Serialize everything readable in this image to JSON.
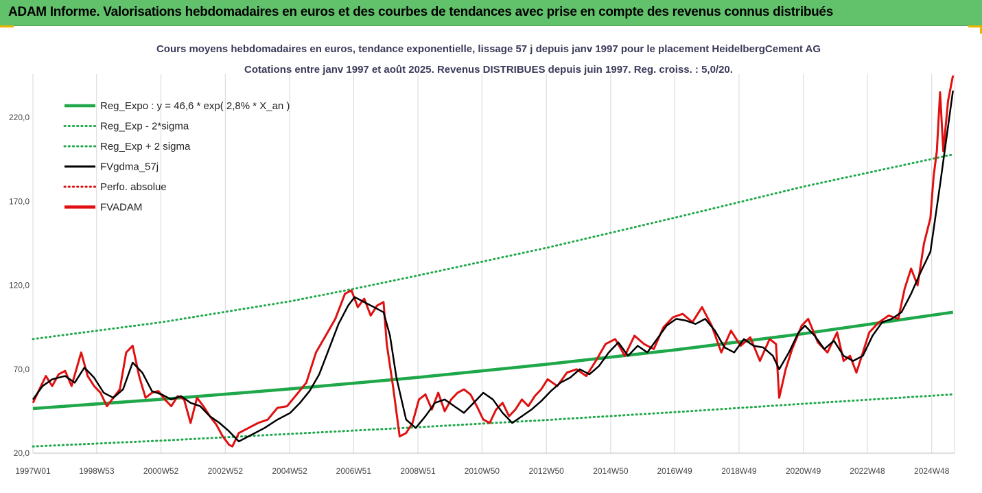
{
  "banner": {
    "title": "ADAM Informe. Valorisations hebdomadaires en euros et des courbes de tendances avec prise en compte des revenus connus distribués"
  },
  "colors": {
    "banner_bg": "#62c26c",
    "accent": "#e8b400",
    "reg_expo": "#1fa84a",
    "band": "#1fa84a",
    "fvgdma": "#000000",
    "perf": "#e01010",
    "fvadam": "#e01010"
  },
  "chart_data": {
    "type": "line",
    "title": "Cours moyens hebdomadaires en euros, tendance exponentielle, lissage 57 j depuis janv 1997 pour le placement HeidelbergCement AG",
    "subtitle": "Cotations entre janv 1997 et août 2025. Revenus DISTRIBUES depuis juin 1997. Reg. croiss. : 5,0/20.",
    "xlabel": "",
    "ylabel": "",
    "x_range": [
      1997.0,
      2025.65
    ],
    "ylim": [
      20,
      245
    ],
    "yticks": [
      20,
      70,
      120,
      170,
      220
    ],
    "ytick_labels": [
      "20,0",
      "70,0",
      "120,0",
      "170,0",
      "220,0"
    ],
    "xtick_labels": [
      {
        "label": "1997W01",
        "x": 1997.0
      },
      {
        "label": "1998W53",
        "x": 1998.98
      },
      {
        "label": "2000W52",
        "x": 2000.98
      },
      {
        "label": "2002W52",
        "x": 2002.98
      },
      {
        "label": "2004W52",
        "x": 2004.98
      },
      {
        "label": "2006W51",
        "x": 2006.97
      },
      {
        "label": "2008W51",
        "x": 2008.97
      },
      {
        "label": "2010W50",
        "x": 2010.96
      },
      {
        "label": "2012W50",
        "x": 2012.96
      },
      {
        "label": "2014W50",
        "x": 2014.96
      },
      {
        "label": "2016W49",
        "x": 2016.95
      },
      {
        "label": "2018W49",
        "x": 2018.95
      },
      {
        "label": "2020W49",
        "x": 2020.95
      },
      {
        "label": "2022W48",
        "x": 2022.94
      },
      {
        "label": "2024W48",
        "x": 2024.94
      }
    ],
    "grid": "vertical",
    "legend_position": "top-left",
    "legend": [
      {
        "name": "Reg_Expo : y = 46,6 * exp( 2,8% *  X_an )",
        "style": "thick-solid",
        "color": "#1fa84a"
      },
      {
        "name": "Reg_Exp - 2*sigma",
        "style": "dotted",
        "color": "#1fa84a"
      },
      {
        "name": "Reg_Exp + 2 sigma",
        "style": "dotted",
        "color": "#1fa84a"
      },
      {
        "name": "FVgdma_57j",
        "style": "solid",
        "color": "#000000"
      },
      {
        "name": "Perfo. absolue",
        "style": "dotted",
        "color": "#e01010"
      },
      {
        "name": "FVADAM",
        "style": "thick-solid",
        "color": "#e01010"
      }
    ],
    "regression": {
      "a": 46.6,
      "rate": 0.028
    },
    "series": [
      {
        "name": "Reg_Expo : y = 46,6 * exp( 2,8% *  X_an )",
        "x": [
          1997.0,
          2001.0,
          2005.0,
          2009.0,
          2013.0,
          2017.0,
          2021.0,
          2025.6
        ],
        "y": [
          46.6,
          52.1,
          58.3,
          65.2,
          73.0,
          81.6,
          91.3,
          104.0
        ]
      },
      {
        "name": "Reg_Exp - 2*sigma",
        "x": [
          1997.0,
          2001.0,
          2005.0,
          2009.0,
          2013.0,
          2017.0,
          2021.0,
          2025.6
        ],
        "y": [
          24.0,
          27.5,
          31.5,
          35.5,
          39.8,
          44.5,
          49.5,
          55.0
        ]
      },
      {
        "name": "Reg_Exp + 2 sigma",
        "x": [
          1997.0,
          2001.0,
          2005.0,
          2007.0,
          2009.0,
          2013.0,
          2017.0,
          2021.0,
          2025.6
        ],
        "y": [
          88.0,
          98.0,
          110.5,
          118.0,
          126.0,
          142.5,
          160.5,
          179.0,
          198.0
        ]
      },
      {
        "name": "FVgdma_57j",
        "x": [
          1997.0,
          1997.3,
          1997.6,
          1998.0,
          1998.3,
          1998.6,
          1998.9,
          1999.2,
          1999.5,
          1999.8,
          2000.1,
          2000.4,
          2000.7,
          2001.0,
          2001.3,
          2001.6,
          2001.9,
          2002.2,
          2002.5,
          2002.8,
          2003.1,
          2003.4,
          2003.8,
          2004.2,
          2004.6,
          2005.0,
          2005.3,
          2005.6,
          2005.9,
          2006.2,
          2006.5,
          2006.8,
          2007.0,
          2007.3,
          2007.6,
          2007.9,
          2008.1,
          2008.3,
          2008.6,
          2008.9,
          2009.2,
          2009.5,
          2009.8,
          2010.1,
          2010.4,
          2010.7,
          2011.0,
          2011.3,
          2011.6,
          2011.9,
          2012.2,
          2012.5,
          2012.8,
          2013.1,
          2013.4,
          2013.7,
          2014.0,
          2014.3,
          2014.6,
          2014.9,
          2015.2,
          2015.5,
          2015.8,
          2016.1,
          2016.4,
          2016.7,
          2017.0,
          2017.3,
          2017.6,
          2017.9,
          2018.2,
          2018.5,
          2018.8,
          2019.1,
          2019.4,
          2019.7,
          2020.0,
          2020.2,
          2020.5,
          2020.8,
          2021.0,
          2021.3,
          2021.6,
          2021.9,
          2022.2,
          2022.5,
          2022.8,
          2023.1,
          2023.4,
          2023.7,
          2024.0,
          2024.3,
          2024.6,
          2024.9,
          2025.2,
          2025.6
        ],
        "y": [
          52,
          60,
          64,
          66,
          62,
          71,
          65,
          56,
          53,
          58,
          74,
          68,
          57,
          55,
          52,
          54,
          50,
          48,
          42,
          38,
          33,
          27,
          31,
          35,
          40,
          44,
          50,
          57,
          67,
          82,
          97,
          108,
          113,
          110,
          107,
          104,
          90,
          65,
          40,
          35,
          42,
          50,
          52,
          48,
          44,
          50,
          56,
          52,
          44,
          38,
          42,
          46,
          51,
          57,
          62,
          65,
          70,
          67,
          72,
          80,
          86,
          78,
          84,
          80,
          88,
          96,
          100,
          99,
          97,
          100,
          93,
          83,
          80,
          88,
          84,
          83,
          78,
          70,
          80,
          92,
          96,
          90,
          82,
          87,
          78,
          75,
          78,
          90,
          98,
          100,
          104,
          115,
          128,
          140,
          180,
          236
        ]
      },
      {
        "name": "FVADAM",
        "x": [
          1997.0,
          1997.2,
          1997.4,
          1997.6,
          1997.8,
          1998.0,
          1998.2,
          1998.5,
          1998.7,
          1998.9,
          1999.1,
          1999.3,
          1999.5,
          1999.7,
          1999.9,
          2000.1,
          2000.3,
          2000.5,
          2000.7,
          2000.9,
          2001.1,
          2001.3,
          2001.5,
          2001.7,
          2001.9,
          2002.1,
          2002.3,
          2002.5,
          2002.7,
          2002.9,
          2003.1,
          2003.2,
          2003.4,
          2003.7,
          2004.0,
          2004.3,
          2004.6,
          2004.9,
          2005.2,
          2005.5,
          2005.8,
          2006.1,
          2006.4,
          2006.7,
          2006.9,
          2007.1,
          2007.3,
          2007.5,
          2007.7,
          2007.9,
          2008.0,
          2008.2,
          2008.4,
          2008.6,
          2008.8,
          2009.0,
          2009.2,
          2009.4,
          2009.6,
          2009.8,
          2010.0,
          2010.2,
          2010.4,
          2010.6,
          2010.8,
          2011.0,
          2011.2,
          2011.4,
          2011.6,
          2011.8,
          2012.0,
          2012.2,
          2012.4,
          2012.6,
          2012.8,
          2013.0,
          2013.3,
          2013.6,
          2013.9,
          2014.2,
          2014.5,
          2014.8,
          2015.1,
          2015.4,
          2015.7,
          2016.0,
          2016.3,
          2016.6,
          2016.9,
          2017.2,
          2017.5,
          2017.8,
          2018.1,
          2018.4,
          2018.7,
          2019.0,
          2019.3,
          2019.6,
          2019.9,
          2020.1,
          2020.2,
          2020.4,
          2020.6,
          2020.9,
          2021.1,
          2021.4,
          2021.7,
          2022.0,
          2022.2,
          2022.4,
          2022.6,
          2022.8,
          2023.0,
          2023.3,
          2023.6,
          2023.9,
          2024.1,
          2024.3,
          2024.5,
          2024.7,
          2024.9,
          2025.0,
          2025.1,
          2025.2,
          2025.3,
          2025.45,
          2025.6
        ],
        "y": [
          50,
          58,
          66,
          60,
          67,
          69,
          60,
          80,
          66,
          60,
          56,
          48,
          53,
          58,
          80,
          84,
          66,
          53,
          56,
          57,
          52,
          48,
          54,
          52,
          38,
          53,
          48,
          42,
          37,
          30,
          25,
          24,
          32,
          35,
          38,
          40,
          47,
          48,
          55,
          62,
          80,
          90,
          100,
          115,
          117,
          107,
          112,
          102,
          108,
          110,
          85,
          59,
          30,
          32,
          38,
          52,
          55,
          46,
          56,
          45,
          52,
          56,
          58,
          55,
          48,
          40,
          38,
          46,
          50,
          42,
          46,
          52,
          48,
          54,
          58,
          64,
          60,
          68,
          70,
          66,
          75,
          85,
          88,
          78,
          90,
          85,
          82,
          95,
          101,
          103,
          98,
          107,
          96,
          80,
          93,
          84,
          89,
          75,
          88,
          85,
          53,
          70,
          82,
          96,
          100,
          86,
          80,
          92,
          75,
          78,
          68,
          80,
          92,
          98,
          102,
          100,
          118,
          130,
          120,
          145,
          160,
          185,
          200,
          235,
          200,
          230,
          245
        ]
      }
    ]
  }
}
